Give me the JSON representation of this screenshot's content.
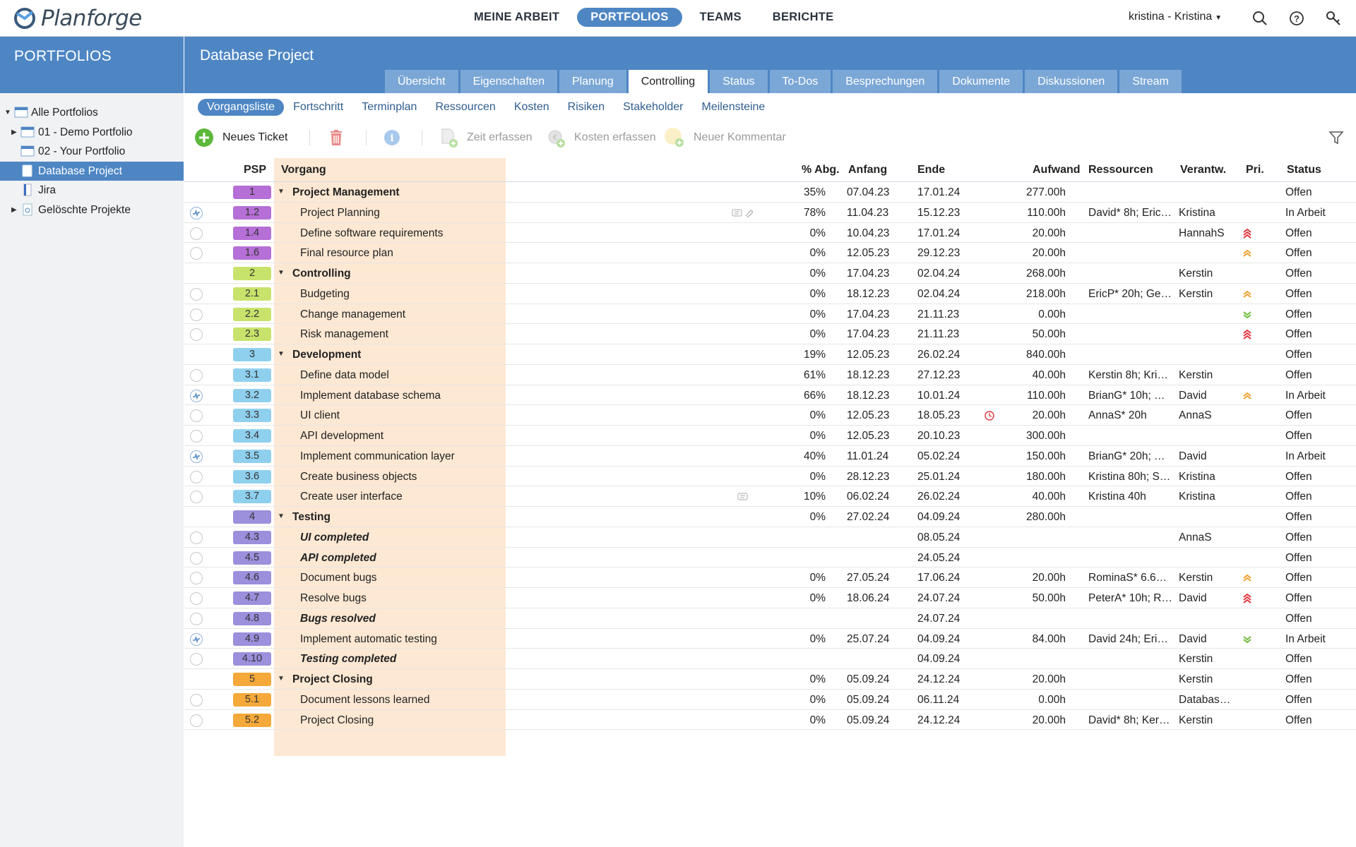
{
  "app": {
    "logo_text": "Planforge",
    "nav": [
      "MEINE ARBEIT",
      "PORTFOLIOS",
      "TEAMS",
      "BERICHTE"
    ],
    "nav_active": 1,
    "user": "kristina - Kristina"
  },
  "sidebar": {
    "title": "PORTFOLIOS",
    "items": [
      {
        "label": "Alle Portfolios",
        "arrow": "▼"
      },
      {
        "label": "01 - Demo Portfolio",
        "arrow": "▶"
      },
      {
        "label": "02 - Your Portfolio",
        "arrow": ""
      },
      {
        "label": "Database Project",
        "arrow": ""
      },
      {
        "label": "Jira",
        "arrow": ""
      },
      {
        "label": "Gelöschte Projekte",
        "arrow": "▶"
      }
    ],
    "selected": 3
  },
  "project": {
    "title": "Database Project",
    "tabs": [
      "Übersicht",
      "Eigenschaften",
      "Planung",
      "Controlling",
      "Status",
      "To-Dos",
      "Besprechungen",
      "Dokumente",
      "Diskussionen",
      "Stream"
    ],
    "active_tab": 3
  },
  "subnav": {
    "items": [
      "Vorgangsliste",
      "Fortschritt",
      "Terminplan",
      "Ressourcen",
      "Kosten",
      "Risiken",
      "Stakeholder",
      "Meilensteine"
    ],
    "active": 0
  },
  "toolbar": {
    "new_ticket": "Neues Ticket",
    "time": "Zeit erfassen",
    "costs": "Kosten erfassen",
    "comment": "Neuer Kommentar"
  },
  "grid": {
    "headers": {
      "psp": "PSP",
      "vorgang": "Vorgang",
      "abg": "% Abg.",
      "anfang": "Anfang",
      "ende": "Ende",
      "aufwand": "Aufwand",
      "ressourcen": "Ressourcen",
      "verantw": "Verantw.",
      "pri": "Pri.",
      "status": "Status"
    },
    "colors": {
      "purple": "#b56fd6",
      "green": "#c7e36b",
      "blue": "#8fd0ef",
      "violet": "#9c8fdc",
      "orange": "#f4a93a",
      "prio_high": "#e0353d",
      "prio_med": "#f0a030",
      "prio_low": "#6dbb3a"
    },
    "rows": [
      {
        "psp": "1",
        "color": "purple",
        "name": "Project Management",
        "type": "group",
        "abg": "35%",
        "anfang": "07.04.23",
        "ende": "17.01.24",
        "aufwand": "277.00h",
        "res": "",
        "ver": "",
        "prio": "",
        "status": "Offen",
        "circle": ""
      },
      {
        "psp": "1.2",
        "color": "purple",
        "name": "Project Planning",
        "type": "task",
        "abg": "78%",
        "anfang": "11.04.23",
        "ende": "15.12.23",
        "aufwand": "110.00h",
        "res": "David* 8h; Eric…",
        "ver": "Kristina",
        "prio": "",
        "status": "In Arbeit",
        "circle": "active",
        "icons": "comment-attach"
      },
      {
        "psp": "1.4",
        "color": "purple",
        "name": "Define software requirements",
        "type": "task",
        "abg": "0%",
        "anfang": "10.04.23",
        "ende": "17.01.24",
        "aufwand": "20.00h",
        "res": "",
        "ver": "HannahS",
        "prio": "high",
        "status": "Offen",
        "circle": "open"
      },
      {
        "psp": "1.6",
        "color": "purple",
        "name": "Final resource plan",
        "type": "task",
        "abg": "0%",
        "anfang": "12.05.23",
        "ende": "29.12.23",
        "aufwand": "20.00h",
        "res": "",
        "ver": "",
        "prio": "med",
        "status": "Offen",
        "circle": "open"
      },
      {
        "psp": "2",
        "color": "green",
        "name": "Controlling",
        "type": "group",
        "abg": "0%",
        "anfang": "17.04.23",
        "ende": "02.04.24",
        "aufwand": "268.00h",
        "res": "",
        "ver": "Kerstin",
        "prio": "",
        "status": "Offen",
        "circle": ""
      },
      {
        "psp": "2.1",
        "color": "green",
        "name": "Budgeting",
        "type": "task",
        "abg": "0%",
        "anfang": "18.12.23",
        "ende": "02.04.24",
        "aufwand": "218.00h",
        "res": "EricP* 20h; Ge…",
        "ver": "Kerstin",
        "prio": "med",
        "status": "Offen",
        "circle": "open"
      },
      {
        "psp": "2.2",
        "color": "green",
        "name": "Change management",
        "type": "task",
        "abg": "0%",
        "anfang": "17.04.23",
        "ende": "21.11.23",
        "aufwand": "0.00h",
        "res": "",
        "ver": "",
        "prio": "low",
        "status": "Offen",
        "circle": "open"
      },
      {
        "psp": "2.3",
        "color": "green",
        "name": "Risk management",
        "type": "task",
        "abg": "0%",
        "anfang": "17.04.23",
        "ende": "21.11.23",
        "aufwand": "50.00h",
        "res": "",
        "ver": "",
        "prio": "high",
        "status": "Offen",
        "circle": "open"
      },
      {
        "psp": "3",
        "color": "blue",
        "name": "Development",
        "type": "group",
        "abg": "19%",
        "anfang": "12.05.23",
        "ende": "26.02.24",
        "aufwand": "840.00h",
        "res": "",
        "ver": "",
        "prio": "",
        "status": "Offen",
        "circle": ""
      },
      {
        "psp": "3.1",
        "color": "blue",
        "name": "Define data model",
        "type": "task",
        "abg": "61%",
        "anfang": "18.12.23",
        "ende": "27.12.23",
        "aufwand": "40.00h",
        "res": "Kerstin 8h; Kri…",
        "ver": "Kerstin",
        "prio": "",
        "status": "Offen",
        "circle": "open"
      },
      {
        "psp": "3.2",
        "color": "blue",
        "name": "Implement database schema",
        "type": "task",
        "abg": "66%",
        "anfang": "18.12.23",
        "ende": "10.01.24",
        "aufwand": "110.00h",
        "res": "BrianG* 10h; …",
        "ver": "David",
        "prio": "med",
        "status": "In Arbeit",
        "circle": "active"
      },
      {
        "psp": "3.3",
        "color": "blue",
        "name": "UI client",
        "type": "task",
        "abg": "0%",
        "anfang": "12.05.23",
        "ende": "18.05.23",
        "aufwand": "20.00h",
        "res": "AnnaS* 20h",
        "ver": "AnnaS",
        "prio": "",
        "status": "Offen",
        "circle": "open",
        "overdue": true
      },
      {
        "psp": "3.4",
        "color": "blue",
        "name": "API development",
        "type": "task",
        "abg": "0%",
        "anfang": "12.05.23",
        "ende": "20.10.23",
        "aufwand": "300.00h",
        "res": "",
        "ver": "",
        "prio": "",
        "status": "Offen",
        "circle": "open"
      },
      {
        "psp": "3.5",
        "color": "blue",
        "name": "Implement communication layer",
        "type": "task",
        "abg": "40%",
        "anfang": "11.01.24",
        "ende": "05.02.24",
        "aufwand": "150.00h",
        "res": "BrianG* 20h; …",
        "ver": "David",
        "prio": "",
        "status": "In Arbeit",
        "circle": "active"
      },
      {
        "psp": "3.6",
        "color": "blue",
        "name": "Create business objects",
        "type": "task",
        "abg": "0%",
        "anfang": "28.12.23",
        "ende": "25.01.24",
        "aufwand": "180.00h",
        "res": "Kristina 80h; S…",
        "ver": "Kristina",
        "prio": "",
        "status": "Offen",
        "circle": "open"
      },
      {
        "psp": "3.7",
        "color": "blue",
        "name": "Create user interface",
        "type": "task",
        "abg": "10%",
        "anfang": "06.02.24",
        "ende": "26.02.24",
        "aufwand": "40.00h",
        "res": "Kristina 40h",
        "ver": "Kristina",
        "prio": "",
        "status": "Offen",
        "circle": "open",
        "icons": "comment"
      },
      {
        "psp": "4",
        "color": "violet",
        "name": "Testing",
        "type": "group",
        "abg": "0%",
        "anfang": "27.02.24",
        "ende": "04.09.24",
        "aufwand": "280.00h",
        "res": "",
        "ver": "",
        "prio": "",
        "status": "Offen",
        "circle": ""
      },
      {
        "psp": "4.3",
        "color": "violet",
        "name": "UI completed",
        "type": "milestone",
        "abg": "",
        "anfang": "",
        "ende": "08.05.24",
        "aufwand": "",
        "res": "",
        "ver": "AnnaS",
        "prio": "",
        "status": "Offen",
        "circle": "open"
      },
      {
        "psp": "4.5",
        "color": "violet",
        "name": "API completed",
        "type": "milestone",
        "abg": "",
        "anfang": "",
        "ende": "24.05.24",
        "aufwand": "",
        "res": "",
        "ver": "",
        "prio": "",
        "status": "Offen",
        "circle": "open"
      },
      {
        "psp": "4.6",
        "color": "violet",
        "name": "Document bugs",
        "type": "task",
        "abg": "0%",
        "anfang": "27.05.24",
        "ende": "17.06.24",
        "aufwand": "20.00h",
        "res": "RominaS* 6.6…",
        "ver": "Kerstin",
        "prio": "med",
        "status": "Offen",
        "circle": "open"
      },
      {
        "psp": "4.7",
        "color": "violet",
        "name": "Resolve bugs",
        "type": "task",
        "abg": "0%",
        "anfang": "18.06.24",
        "ende": "24.07.24",
        "aufwand": "50.00h",
        "res": "PeterA* 10h; R…",
        "ver": "David",
        "prio": "high",
        "status": "Offen",
        "circle": "open"
      },
      {
        "psp": "4.8",
        "color": "violet",
        "name": "Bugs resolved",
        "type": "milestone",
        "abg": "",
        "anfang": "",
        "ende": "24.07.24",
        "aufwand": "",
        "res": "",
        "ver": "",
        "prio": "",
        "status": "Offen",
        "circle": "open"
      },
      {
        "psp": "4.9",
        "color": "violet",
        "name": "Implement automatic testing",
        "type": "task",
        "abg": "0%",
        "anfang": "25.07.24",
        "ende": "04.09.24",
        "aufwand": "84.00h",
        "res": "David 24h; Eri…",
        "ver": "David",
        "prio": "low",
        "status": "In Arbeit",
        "circle": "active"
      },
      {
        "psp": "4.10",
        "color": "violet",
        "name": "Testing completed",
        "type": "milestone",
        "abg": "",
        "anfang": "",
        "ende": "04.09.24",
        "aufwand": "",
        "res": "",
        "ver": "Kerstin",
        "prio": "",
        "status": "Offen",
        "circle": "open"
      },
      {
        "psp": "5",
        "color": "orange",
        "name": "Project Closing",
        "type": "group",
        "abg": "0%",
        "anfang": "05.09.24",
        "ende": "24.12.24",
        "aufwand": "20.00h",
        "res": "",
        "ver": "Kerstin",
        "prio": "",
        "status": "Offen",
        "circle": ""
      },
      {
        "psp": "5.1",
        "color": "orange",
        "name": "Document lessons learned",
        "type": "task",
        "abg": "0%",
        "anfang": "05.09.24",
        "ende": "06.11.24",
        "aufwand": "0.00h",
        "res": "",
        "ver": "Databas…",
        "prio": "",
        "status": "Offen",
        "circle": "open"
      },
      {
        "psp": "5.2",
        "color": "orange",
        "name": "Project Closing",
        "type": "task",
        "abg": "0%",
        "anfang": "05.09.24",
        "ende": "24.12.24",
        "aufwand": "20.00h",
        "res": "David* 8h; Ker…",
        "ver": "Kerstin",
        "prio": "",
        "status": "Offen",
        "circle": "open"
      }
    ]
  }
}
